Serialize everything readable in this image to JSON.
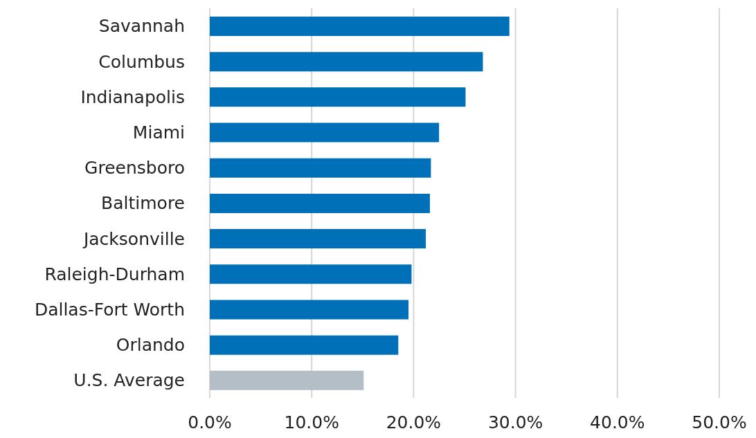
{
  "chart_data": {
    "type": "bar",
    "orientation": "horizontal",
    "categories": [
      "Savannah",
      "Columbus",
      "Indianapolis",
      "Miami",
      "Greensboro",
      "Baltimore",
      "Jacksonville",
      "Raleigh-Durham",
      "Dallas-Fort Worth",
      "Orlando",
      "U.S. Average"
    ],
    "values": [
      29.4,
      26.8,
      25.1,
      22.5,
      21.7,
      21.6,
      21.2,
      19.8,
      19.5,
      18.5,
      15.1
    ],
    "colors": [
      "#0070b8",
      "#0070b8",
      "#0070b8",
      "#0070b8",
      "#0070b8",
      "#0070b8",
      "#0070b8",
      "#0070b8",
      "#0070b8",
      "#0070b8",
      "#b4bec6"
    ],
    "xlim": [
      0,
      50
    ],
    "xticks": [
      {
        "value": 0,
        "label": "0.0%"
      },
      {
        "value": 10,
        "label": "10.0%"
      },
      {
        "value": 20,
        "label": "20.0%"
      },
      {
        "value": 30,
        "label": "30.0%"
      },
      {
        "value": 40,
        "label": "40.0%"
      },
      {
        "value": 50,
        "label": "50.0%"
      }
    ],
    "grid": "x"
  }
}
